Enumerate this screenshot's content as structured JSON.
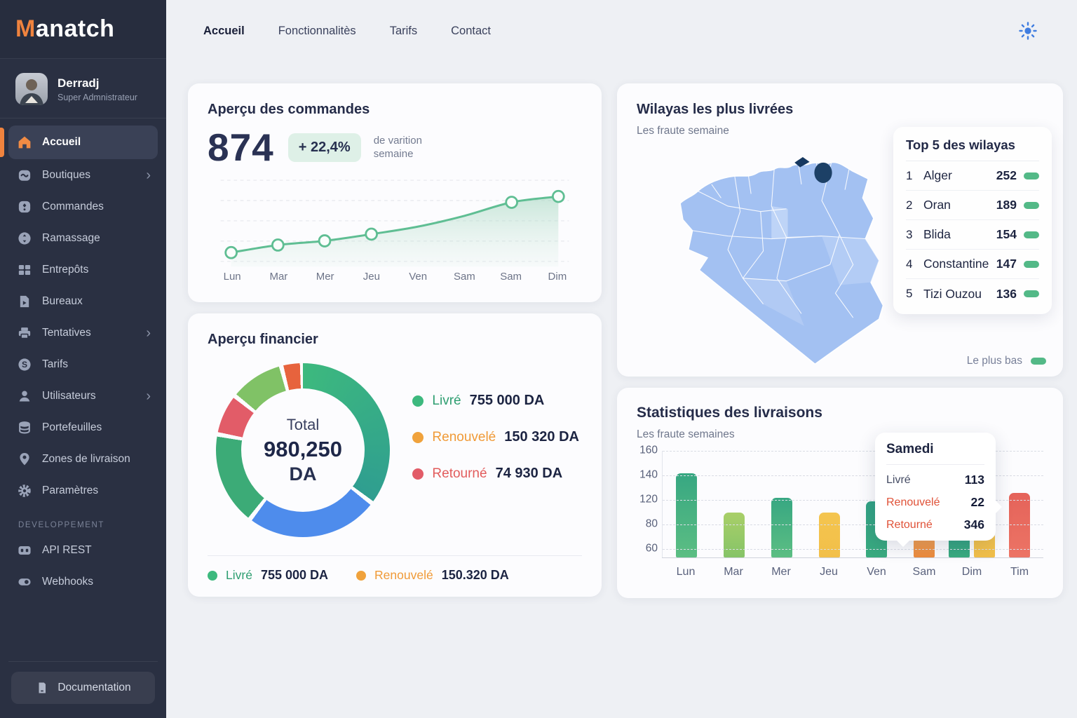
{
  "colors": {
    "accent_orange": "#f0833e",
    "green": "#2e9e71",
    "orange": "#f09a37",
    "red": "#e25c5c",
    "tooltip_red": "#e05238",
    "pill_green": "#53b987",
    "map_blue": "#a3c1f2",
    "highlight_wilaya": "#1c4066",
    "sun_blue": "#3f7de0"
  },
  "sidebar": {
    "logo": {
      "prefix": "M",
      "rest": "anatch"
    },
    "user": {
      "name": "Derradj",
      "role": "Super Admnistrateur"
    },
    "items": [
      {
        "label": "Accueil",
        "icon": "home",
        "active": true,
        "chevron": false
      },
      {
        "label": "Boutiques",
        "icon": "storefront",
        "active": false,
        "chevron": true
      },
      {
        "label": "Commandes",
        "icon": "orders-box",
        "active": false,
        "chevron": false
      },
      {
        "label": "Ramassage",
        "icon": "pickup-arrows",
        "active": false,
        "chevron": false
      },
      {
        "label": "Entrepôts",
        "icon": "warehouse-grid",
        "active": false,
        "chevron": false
      },
      {
        "label": "Bureaux",
        "icon": "document-arrow",
        "active": false,
        "chevron": false
      },
      {
        "label": "Tentatives",
        "icon": "printer",
        "active": false,
        "chevron": true
      },
      {
        "label": "Tarifs",
        "icon": "price-circle",
        "active": false,
        "chevron": false
      },
      {
        "label": "Utilisateurs",
        "icon": "user",
        "active": false,
        "chevron": true
      },
      {
        "label": "Portefeuilles",
        "icon": "wallet-stack",
        "active": false,
        "chevron": false
      },
      {
        "label": "Zones de livraison",
        "icon": "map-pin",
        "active": false,
        "chevron": false
      },
      {
        "label": "Paramètres",
        "icon": "gear",
        "active": false,
        "chevron": false
      }
    ],
    "section_label": "DEVELOPPEMENT",
    "dev_items": [
      {
        "label": "API REST",
        "icon": "api-card",
        "active": false,
        "chevron": false
      },
      {
        "label": "Webhooks",
        "icon": "toggle",
        "active": false,
        "chevron": false
      }
    ],
    "documentation_label": "Documentation"
  },
  "topnav": {
    "links": [
      {
        "label": "Accueil",
        "active": true
      },
      {
        "label": "Fonctionnalitès",
        "active": false
      },
      {
        "label": "Tarifs",
        "active": false
      },
      {
        "label": "Contact",
        "active": false
      }
    ]
  },
  "orders": {
    "title": "Aperçu des commandes",
    "value": "874",
    "badge": "+ 22,4%",
    "caption": "de varition semaine",
    "chart_data": {
      "type": "line",
      "x": [
        "Lun",
        "Mar",
        "Mer",
        "Jeu",
        "Ven",
        "Sam",
        "Sam",
        "Dim"
      ],
      "values": [
        16,
        25,
        30,
        38,
        47,
        60,
        76,
        83
      ],
      "marker_indices": [
        0,
        1,
        2,
        3,
        6,
        7
      ],
      "line_color": "#5fbe93",
      "ylim": [
        0,
        100
      ],
      "grid": "dashed-horizontal"
    }
  },
  "financial": {
    "title": "Aperçu financier",
    "center": {
      "label": "Total",
      "value": "980,250",
      "unit": "DA"
    },
    "legend": [
      {
        "label": "Livré",
        "value": "755 000 DA",
        "color": "#2e9e71",
        "dot": "#3db97e"
      },
      {
        "label": "Renouvelé",
        "value": "150 320 DA",
        "color": "#f09a37",
        "dot": "#f0a23c"
      },
      {
        "label": "Retourné",
        "value": "74 930 DA",
        "color": "#e25c5c",
        "dot": "#e25c68"
      }
    ],
    "footer_legend": [
      {
        "label": "Livré",
        "value": "755 000 DA",
        "color": "#2e9e71",
        "dot": "#3db97e"
      },
      {
        "label": "Renouvelé",
        "value": "150.320 DA",
        "color": "#f09a37",
        "dot": "#f0a23c"
      }
    ],
    "chart_data": {
      "type": "donut",
      "total": 980250,
      "values": [
        {
          "label": "Livré",
          "amount": 755000
        },
        {
          "label": "Renouvelé",
          "amount": 150320
        },
        {
          "label": "Retourné",
          "amount": 74930
        }
      ],
      "segments": [
        {
          "from": 0,
          "to": 126,
          "color_start": "#3db97e",
          "color_end": "#2f9e90"
        },
        {
          "from": 129,
          "to": 216,
          "color_start": "#4e8cec",
          "color_end": "#4e8cec"
        },
        {
          "from": 219,
          "to": 279,
          "color_start": "#3cab77",
          "color_end": "#3cab77"
        },
        {
          "from": 282,
          "to": 307,
          "color_start": "#e25c68",
          "color_end": "#e25c68"
        },
        {
          "from": 310,
          "to": 344,
          "color_start": "#80c266",
          "color_end": "#80c266"
        },
        {
          "from": 347,
          "to": 358,
          "color_start": "#e7633d",
          "color_end": "#e7633d"
        }
      ]
    }
  },
  "wilayas": {
    "title": "Wilayas les plus livrées",
    "subtitle": "Les fraute semaine",
    "panel": {
      "title": "Top 5 des wilayas",
      "rows": [
        {
          "rank": "1",
          "name": "Alger",
          "value": "252"
        },
        {
          "rank": "2",
          "name": "Oran",
          "value": "189"
        },
        {
          "rank": "3",
          "name": "Blida",
          "value": "154"
        },
        {
          "rank": "4",
          "name": "Constantine",
          "value": "147"
        },
        {
          "rank": "5",
          "name": "Tizi Ouzou",
          "value": "136"
        }
      ]
    },
    "footer_label": "Le plus bas"
  },
  "stats": {
    "title": "Statistiques des livraisons",
    "subtitle": "Les fraute semaines",
    "chart_data": {
      "type": "bar",
      "yticks": [
        160,
        140,
        120,
        80,
        60
      ],
      "grid": "dashed-horizontal",
      "groups": [
        {
          "label": "Lun",
          "bars": [
            {
              "value": 142,
              "color": "green"
            }
          ]
        },
        {
          "label": "Mar",
          "bars": [
            {
              "value": 100,
              "color": "lime"
            }
          ]
        },
        {
          "label": "Mer",
          "bars": [
            {
              "value": 122,
              "color": "green"
            }
          ]
        },
        {
          "label": "Jeu",
          "bars": [
            {
              "value": 99,
              "color": "yellow"
            }
          ]
        },
        {
          "label": "Ven",
          "bars": [
            {
              "value": 118,
              "color": "teal"
            }
          ]
        },
        {
          "label": "Sam",
          "bars": [
            {
              "value": 70,
              "color": "orange"
            }
          ]
        },
        {
          "label": "Dim",
          "bars": [
            {
              "value": 75,
              "color": "teal"
            },
            {
              "value": 74,
              "color": "yellow"
            }
          ]
        },
        {
          "label": "Tim",
          "bars": [
            {
              "value": 126,
              "color": "red"
            }
          ]
        }
      ]
    },
    "tooltip": {
      "title": "Samedi",
      "rows": [
        {
          "label": "Livré",
          "value": "113",
          "red": false
        },
        {
          "label": "Renouvelé",
          "value": "22",
          "red": true
        },
        {
          "label": "Retourné",
          "value": "346",
          "red": true
        }
      ]
    }
  }
}
